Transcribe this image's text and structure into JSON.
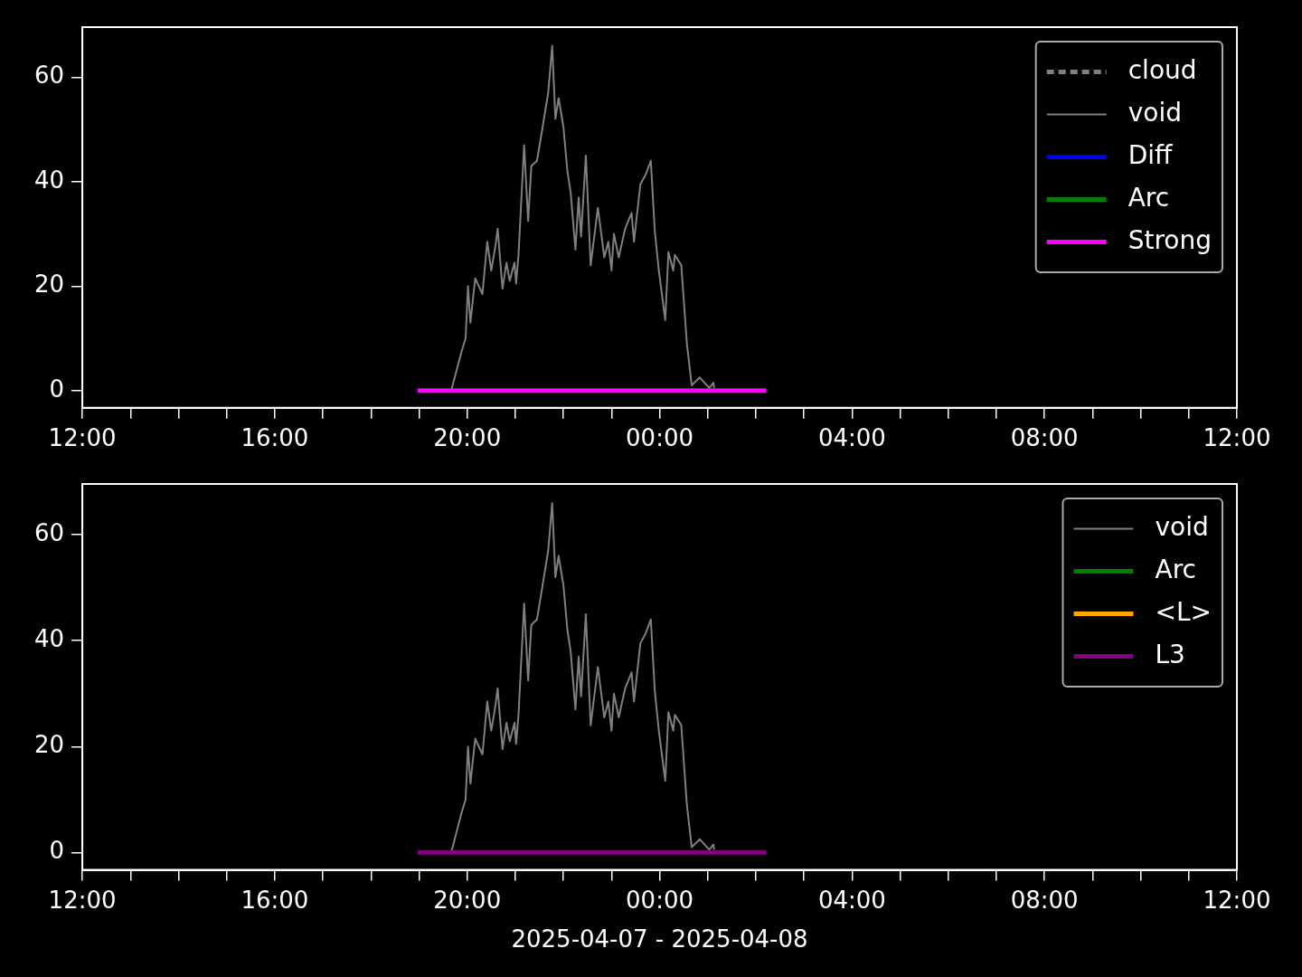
{
  "chart_data": [
    {
      "type": "line",
      "xlim": [
        "2025-04-07T12:00",
        "2025-04-08T12:00"
      ],
      "ylim": [
        -3.3,
        69.6
      ],
      "yticks": [
        0,
        20,
        40,
        60
      ],
      "xticks": [
        {
          "value": "2025-04-07T12:00",
          "label": "12:00"
        },
        {
          "value": "2025-04-07T13:00",
          "label": null
        },
        {
          "value": "2025-04-07T14:00",
          "label": null
        },
        {
          "value": "2025-04-07T15:00",
          "label": null
        },
        {
          "value": "2025-04-07T16:00",
          "label": "16:00"
        },
        {
          "value": "2025-04-07T17:00",
          "label": null
        },
        {
          "value": "2025-04-07T18:00",
          "label": null
        },
        {
          "value": "2025-04-07T19:00",
          "label": null
        },
        {
          "value": "2025-04-07T20:00",
          "label": "20:00"
        },
        {
          "value": "2025-04-07T21:00",
          "label": null
        },
        {
          "value": "2025-04-07T22:00",
          "label": null
        },
        {
          "value": "2025-04-07T23:00",
          "label": null
        },
        {
          "value": "2025-04-08T00:00",
          "label": "00:00"
        },
        {
          "value": "2025-04-08T01:00",
          "label": null
        },
        {
          "value": "2025-04-08T02:00",
          "label": null
        },
        {
          "value": "2025-04-08T03:00",
          "label": null
        },
        {
          "value": "2025-04-08T04:00",
          "label": "04:00"
        },
        {
          "value": "2025-04-08T05:00",
          "label": null
        },
        {
          "value": "2025-04-08T06:00",
          "label": null
        },
        {
          "value": "2025-04-08T07:00",
          "label": null
        },
        {
          "value": "2025-04-08T08:00",
          "label": "08:00"
        },
        {
          "value": "2025-04-08T09:00",
          "label": null
        },
        {
          "value": "2025-04-08T10:00",
          "label": null
        },
        {
          "value": "2025-04-08T11:00",
          "label": null
        },
        {
          "value": "2025-04-08T12:00",
          "label": "12:00"
        }
      ],
      "grid": false,
      "legend": "top right",
      "marker": "none",
      "series": [
        {
          "name": "cloud",
          "color": "#808080",
          "line_style": "dashed"
        },
        {
          "name": "void",
          "color": "#808080",
          "line_style": "solid",
          "x": [
            "2025-04-07T19:39",
            "2025-04-07T19:41",
            "2025-04-07T19:53",
            "2025-04-07T19:58",
            "2025-04-07T20:01",
            "2025-04-07T20:04",
            "2025-04-07T20:10",
            "2025-04-07T20:19",
            "2025-04-07T20:25",
            "2025-04-07T20:30",
            "2025-04-07T20:35",
            "2025-04-07T20:38",
            "2025-04-07T20:44",
            "2025-04-07T20:49",
            "2025-04-07T20:53",
            "2025-04-07T20:59",
            "2025-04-07T21:01",
            "2025-04-07T21:04",
            "2025-04-07T21:11",
            "2025-04-07T21:16",
            "2025-04-07T21:20",
            "2025-04-07T21:27",
            "2025-04-07T21:33",
            "2025-04-07T21:41",
            "2025-04-07T21:46",
            "2025-04-07T21:50",
            "2025-04-07T21:54",
            "2025-04-07T22:00",
            "2025-04-07T22:05",
            "2025-04-07T22:09",
            "2025-04-07T22:15",
            "2025-04-07T22:19",
            "2025-04-07T22:22",
            "2025-04-07T22:28",
            "2025-04-07T22:34",
            "2025-04-07T22:43",
            "2025-04-07T22:51",
            "2025-04-07T22:56",
            "2025-04-07T23:00",
            "2025-04-07T23:03",
            "2025-04-07T23:09",
            "2025-04-07T23:17",
            "2025-04-07T23:25",
            "2025-04-07T23:28",
            "2025-04-07T23:36",
            "2025-04-07T23:43",
            "2025-04-07T23:49",
            "2025-04-07T23:54",
            "2025-04-07T23:59",
            "2025-04-08T00:07",
            "2025-04-08T00:11",
            "2025-04-08T00:17",
            "2025-04-08T00:19",
            "2025-04-08T00:27",
            "2025-04-08T00:34",
            "2025-04-08T00:40",
            "2025-04-08T00:50",
            "2025-04-08T01:02",
            "2025-04-08T01:07",
            "2025-04-08T01:08"
          ],
          "values": [
            0,
            0.5,
            7.5,
            10,
            20,
            13,
            21.5,
            18.5,
            28.5,
            23,
            27.5,
            31,
            19.5,
            24.5,
            21,
            24.5,
            20.5,
            26,
            47,
            32.5,
            43,
            44,
            49.5,
            57,
            66,
            52,
            56,
            50.5,
            42,
            38,
            27,
            37,
            29.5,
            45,
            24,
            35,
            25.5,
            28.5,
            23,
            30,
            25.5,
            31,
            34,
            28.5,
            39.5,
            41.5,
            44,
            30.5,
            23,
            13.5,
            26.5,
            23,
            26,
            24,
            9,
            1,
            2.5,
            0.5,
            1.5,
            0.5
          ]
        },
        {
          "name": "Diff",
          "color": "#0000ff",
          "line_style": "solid"
        },
        {
          "name": "Arc",
          "color": "#008000",
          "line_style": "solid"
        },
        {
          "name": "Strong",
          "color": "#ff00ff",
          "line_style": "solid",
          "x": [
            "2025-04-07T18:58",
            "2025-04-08T02:13"
          ],
          "values": [
            0,
            0
          ]
        }
      ]
    },
    {
      "type": "line",
      "xlabel": "2025-04-07 - 2025-04-08",
      "xlim": [
        "2025-04-07T12:00",
        "2025-04-08T12:00"
      ],
      "ylim": [
        -3.3,
        69.6
      ],
      "yticks": [
        0,
        20,
        40,
        60
      ],
      "xticks": [
        {
          "value": "2025-04-07T12:00",
          "label": "12:00"
        },
        {
          "value": "2025-04-07T13:00",
          "label": null
        },
        {
          "value": "2025-04-07T14:00",
          "label": null
        },
        {
          "value": "2025-04-07T15:00",
          "label": null
        },
        {
          "value": "2025-04-07T16:00",
          "label": "16:00"
        },
        {
          "value": "2025-04-07T17:00",
          "label": null
        },
        {
          "value": "2025-04-07T18:00",
          "label": null
        },
        {
          "value": "2025-04-07T19:00",
          "label": null
        },
        {
          "value": "2025-04-07T20:00",
          "label": "20:00"
        },
        {
          "value": "2025-04-07T21:00",
          "label": null
        },
        {
          "value": "2025-04-07T22:00",
          "label": null
        },
        {
          "value": "2025-04-07T23:00",
          "label": null
        },
        {
          "value": "2025-04-08T00:00",
          "label": "00:00"
        },
        {
          "value": "2025-04-08T01:00",
          "label": null
        },
        {
          "value": "2025-04-08T02:00",
          "label": null
        },
        {
          "value": "2025-04-08T03:00",
          "label": null
        },
        {
          "value": "2025-04-08T04:00",
          "label": "04:00"
        },
        {
          "value": "2025-04-08T05:00",
          "label": null
        },
        {
          "value": "2025-04-08T06:00",
          "label": null
        },
        {
          "value": "2025-04-08T07:00",
          "label": null
        },
        {
          "value": "2025-04-08T08:00",
          "label": "08:00"
        },
        {
          "value": "2025-04-08T09:00",
          "label": null
        },
        {
          "value": "2025-04-08T10:00",
          "label": null
        },
        {
          "value": "2025-04-08T11:00",
          "label": null
        },
        {
          "value": "2025-04-08T12:00",
          "label": "12:00"
        }
      ],
      "grid": false,
      "legend": "top right",
      "marker": "none",
      "series": [
        {
          "name": "void",
          "color": "#808080",
          "line_style": "solid",
          "x": [
            "2025-04-07T19:39",
            "2025-04-07T19:41",
            "2025-04-07T19:53",
            "2025-04-07T19:58",
            "2025-04-07T20:01",
            "2025-04-07T20:04",
            "2025-04-07T20:10",
            "2025-04-07T20:19",
            "2025-04-07T20:25",
            "2025-04-07T20:30",
            "2025-04-07T20:35",
            "2025-04-07T20:38",
            "2025-04-07T20:44",
            "2025-04-07T20:49",
            "2025-04-07T20:53",
            "2025-04-07T20:59",
            "2025-04-07T21:01",
            "2025-04-07T21:04",
            "2025-04-07T21:11",
            "2025-04-07T21:16",
            "2025-04-07T21:20",
            "2025-04-07T21:27",
            "2025-04-07T21:33",
            "2025-04-07T21:41",
            "2025-04-07T21:46",
            "2025-04-07T21:50",
            "2025-04-07T21:54",
            "2025-04-07T22:00",
            "2025-04-07T22:05",
            "2025-04-07T22:09",
            "2025-04-07T22:15",
            "2025-04-07T22:19",
            "2025-04-07T22:22",
            "2025-04-07T22:28",
            "2025-04-07T22:34",
            "2025-04-07T22:43",
            "2025-04-07T22:51",
            "2025-04-07T22:56",
            "2025-04-07T23:00",
            "2025-04-07T23:03",
            "2025-04-07T23:09",
            "2025-04-07T23:17",
            "2025-04-07T23:25",
            "2025-04-07T23:28",
            "2025-04-07T23:36",
            "2025-04-07T23:43",
            "2025-04-07T23:49",
            "2025-04-07T23:54",
            "2025-04-07T23:59",
            "2025-04-08T00:07",
            "2025-04-08T00:11",
            "2025-04-08T00:17",
            "2025-04-08T00:19",
            "2025-04-08T00:27",
            "2025-04-08T00:34",
            "2025-04-08T00:40",
            "2025-04-08T00:50",
            "2025-04-08T01:02",
            "2025-04-08T01:07",
            "2025-04-08T01:08"
          ],
          "values": [
            0,
            0.5,
            7.5,
            10,
            20,
            13,
            21.5,
            18.5,
            28.5,
            23,
            27.5,
            31,
            19.5,
            24.5,
            21,
            24.5,
            20.5,
            26,
            47,
            32.5,
            43,
            44,
            49.5,
            57,
            66,
            52,
            56,
            50.5,
            42,
            38,
            27,
            37,
            29.5,
            45,
            24,
            35,
            25.5,
            28.5,
            23,
            30,
            25.5,
            31,
            34,
            28.5,
            39.5,
            41.5,
            44,
            30.5,
            23,
            13.5,
            26.5,
            23,
            26,
            24,
            9,
            1,
            2.5,
            0.5,
            1.5,
            0.5
          ]
        },
        {
          "name": "Arc",
          "color": "#008000",
          "line_style": "solid"
        },
        {
          "name": "<L>",
          "color": "#ffa500",
          "line_style": "solid"
        },
        {
          "name": "L3",
          "color": "#800080",
          "line_style": "solid",
          "x": [
            "2025-04-07T18:58",
            "2025-04-08T02:13"
          ],
          "values": [
            0,
            0
          ]
        }
      ]
    }
  ]
}
